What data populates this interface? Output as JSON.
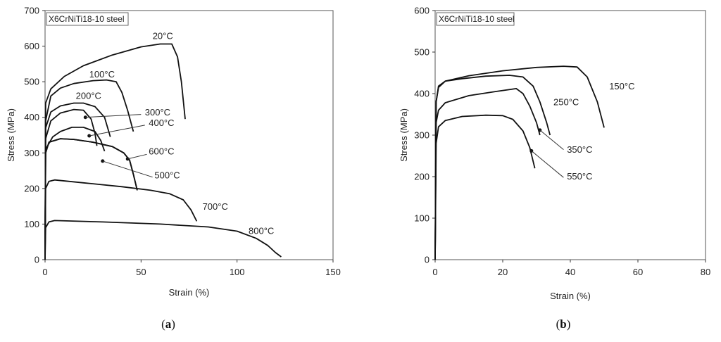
{
  "chart_data": [
    {
      "type": "line",
      "panel_label_open": "(",
      "panel_label_letter": "a",
      "panel_label_close": ")",
      "inset_label": "X6CrNiTi18-10 steel",
      "xlabel": "Strain (%)",
      "ylabel": "Stress (MPa)",
      "xlim": [
        0,
        150
      ],
      "ylim": [
        0,
        700
      ],
      "xticks": [
        0,
        50,
        100,
        150
      ],
      "yticks": [
        0,
        100,
        200,
        300,
        400,
        500,
        600,
        700
      ],
      "grid": false,
      "series": [
        {
          "name": "20°C",
          "points": [
            [
              0,
              0
            ],
            [
              0.3,
              440
            ],
            [
              3,
              480
            ],
            [
              10,
              515
            ],
            [
              20,
              545
            ],
            [
              35,
              575
            ],
            [
              50,
              598
            ],
            [
              60,
              606
            ],
            [
              66,
              606
            ],
            [
              69,
              570
            ],
            [
              71,
              500
            ],
            [
              73,
              395
            ]
          ],
          "label_at": [
            56,
            620
          ],
          "leader": null
        },
        {
          "name": "100°C",
          "points": [
            [
              0,
              0
            ],
            [
              0.3,
              390
            ],
            [
              3,
              460
            ],
            [
              8,
              482
            ],
            [
              15,
              495
            ],
            [
              25,
              503
            ],
            [
              32,
              505
            ],
            [
              37,
              500
            ],
            [
              40,
              470
            ],
            [
              43,
              420
            ],
            [
              46,
              360
            ]
          ],
          "label_at": [
            23,
            512
          ],
          "leader": null
        },
        {
          "name": "200°C",
          "points": [
            [
              0,
              0
            ],
            [
              0.3,
              370
            ],
            [
              3,
              415
            ],
            [
              8,
              432
            ],
            [
              15,
              440
            ],
            [
              20,
              440
            ],
            [
              26,
              430
            ],
            [
              31,
              400
            ],
            [
              34,
              345
            ]
          ],
          "label_at": [
            16,
            452
          ],
          "leader": null
        },
        {
          "name": "300°C",
          "points": [
            [
              0,
              0
            ],
            [
              0.3,
              340
            ],
            [
              3,
              390
            ],
            [
              8,
              412
            ],
            [
              15,
              422
            ],
            [
              20,
              420
            ],
            [
              24,
              395
            ],
            [
              26,
              355
            ],
            [
              27,
              320
            ]
          ],
          "label_at": [
            52,
            405
          ],
          "leader": [
            [
              21,
              400
            ],
            [
              50,
              408
            ]
          ]
        },
        {
          "name": "400°C",
          "points": [
            [
              0,
              0
            ],
            [
              0.3,
              310
            ],
            [
              4,
              345
            ],
            [
              8,
              360
            ],
            [
              14,
              372
            ],
            [
              20,
              372
            ],
            [
              26,
              360
            ],
            [
              29,
              335
            ],
            [
              31,
              305
            ]
          ],
          "label_at": [
            54,
            376
          ],
          "leader": [
            [
              23,
              348
            ],
            [
              52,
              378
            ]
          ]
        },
        {
          "name": "500°C",
          "points": [
            [
              0,
              0
            ],
            [
              0.3,
              300
            ],
            [
              2,
              330
            ],
            [
              8,
              340
            ],
            [
              15,
              338
            ],
            [
              25,
              330
            ],
            [
              35,
              318
            ],
            [
              41,
              300
            ],
            [
              44,
              280
            ],
            [
              46,
              240
            ],
            [
              48,
              195
            ]
          ],
          "label_at": [
            57,
            228
          ],
          "leader": [
            [
              30,
              277
            ],
            [
              56,
              232
            ]
          ]
        },
        {
          "name": "600°C",
          "points": [
            [
              0,
              0
            ],
            [
              0.3,
              300
            ],
            [
              2,
              330
            ],
            [
              8,
              340
            ],
            [
              15,
              338
            ],
            [
              25,
              330
            ],
            [
              35,
              318
            ],
            [
              41,
              300
            ],
            [
              44,
              280
            ],
            [
              46,
              240
            ],
            [
              48,
              195
            ]
          ],
          "label_at": [
            54,
            296
          ],
          "leader": [
            [
              43,
              283
            ],
            [
              53,
              296
            ]
          ]
        },
        {
          "name": "700°C",
          "points": [
            [
              0,
              0
            ],
            [
              0.3,
              200
            ],
            [
              2,
              220
            ],
            [
              5,
              224
            ],
            [
              20,
              216
            ],
            [
              40,
              205
            ],
            [
              55,
              195
            ],
            [
              65,
              185
            ],
            [
              72,
              168
            ],
            [
              76,
              140
            ],
            [
              79,
              108
            ]
          ],
          "label_at": [
            82,
            140
          ],
          "leader": null
        },
        {
          "name": "800°C",
          "points": [
            [
              0,
              0
            ],
            [
              0.3,
              90
            ],
            [
              2,
              106
            ],
            [
              5,
              110
            ],
            [
              30,
              106
            ],
            [
              60,
              100
            ],
            [
              85,
              92
            ],
            [
              100,
              80
            ],
            [
              110,
              60
            ],
            [
              116,
              40
            ],
            [
              120,
              20
            ],
            [
              123,
              8
            ]
          ],
          "label_at": [
            106,
            72
          ],
          "leader": null
        }
      ]
    },
    {
      "type": "line",
      "panel_label_open": "(",
      "panel_label_letter": "b",
      "panel_label_close": ")",
      "inset_label": "X6CrNiTi18-10 steel",
      "xlabel": "Strain (%)",
      "ylabel": "Stress (MPa)",
      "xlim": [
        0,
        80
      ],
      "ylim": [
        0,
        600
      ],
      "xticks": [
        0,
        20,
        40,
        60,
        80
      ],
      "yticks": [
        0,
        100,
        200,
        300,
        400,
        500,
        600
      ],
      "grid": false,
      "series": [
        {
          "name": "150°C",
          "points": [
            [
              0,
              0
            ],
            [
              0.3,
              380
            ],
            [
              1,
              415
            ],
            [
              3,
              430
            ],
            [
              10,
              443
            ],
            [
              20,
              455
            ],
            [
              30,
              463
            ],
            [
              38,
              466
            ],
            [
              42,
              464
            ],
            [
              45,
              440
            ],
            [
              48,
              380
            ],
            [
              50,
              318
            ]
          ],
          "label_at": [
            51.5,
            410
          ],
          "leader": null
        },
        {
          "name": "250°C",
          "points": [
            [
              0,
              0
            ],
            [
              0.3,
              380
            ],
            [
              1,
              418
            ],
            [
              3,
              430
            ],
            [
              8,
              436
            ],
            [
              15,
              442
            ],
            [
              22,
              444
            ],
            [
              26,
              440
            ],
            [
              29,
              418
            ],
            [
              31,
              380
            ],
            [
              33,
              330
            ],
            [
              34,
              300
            ]
          ],
          "label_at": [
            35,
            372
          ],
          "leader": null
        },
        {
          "name": "350°C",
          "points": [
            [
              0,
              0
            ],
            [
              0.3,
              330
            ],
            [
              1,
              360
            ],
            [
              3,
              378
            ],
            [
              10,
              395
            ],
            [
              18,
              405
            ],
            [
              24,
              412
            ],
            [
              26,
              400
            ],
            [
              28,
              370
            ],
            [
              30,
              330
            ],
            [
              31,
              300
            ]
          ],
          "label_at": [
            39,
            258
          ],
          "leader": [
            [
              31,
              312
            ],
            [
              38,
              265
            ]
          ]
        },
        {
          "name": "550°C",
          "points": [
            [
              0,
              0
            ],
            [
              0.3,
              280
            ],
            [
              1,
              320
            ],
            [
              3,
              335
            ],
            [
              8,
              345
            ],
            [
              15,
              348
            ],
            [
              20,
              347
            ],
            [
              23,
              338
            ],
            [
              26,
              310
            ],
            [
              28,
              270
            ],
            [
              29.5,
              220
            ]
          ],
          "label_at": [
            39,
            193
          ],
          "leader": [
            [
              28.5,
              262
            ],
            [
              38,
              198
            ]
          ]
        }
      ]
    }
  ]
}
